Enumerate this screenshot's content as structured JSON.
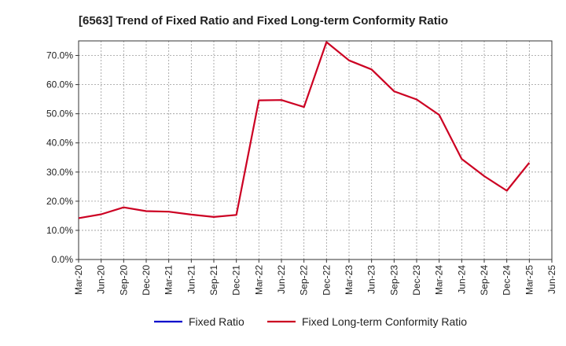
{
  "chart_data": {
    "type": "line",
    "title": "[6563]  Trend of Fixed Ratio and Fixed Long-term Conformity Ratio",
    "xlabel": "",
    "ylabel": "",
    "ylim": [
      0,
      75
    ],
    "y_ticks": [
      0,
      10,
      20,
      30,
      40,
      50,
      60,
      70
    ],
    "y_tick_labels": [
      "0.0%",
      "10.0%",
      "20.0%",
      "30.0%",
      "40.0%",
      "50.0%",
      "60.0%",
      "70.0%"
    ],
    "grid": true,
    "legend_position": "bottom",
    "categories": [
      "Mar-20",
      "Jun-20",
      "Sep-20",
      "Dec-20",
      "Mar-21",
      "Jun-21",
      "Sep-21",
      "Dec-21",
      "Mar-22",
      "Jun-22",
      "Sep-22",
      "Dec-22",
      "Mar-23",
      "Jun-23",
      "Sep-23",
      "Dec-23",
      "Mar-24",
      "Jun-24",
      "Sep-24",
      "Dec-24",
      "Mar-25",
      "Jun-25"
    ],
    "series": [
      {
        "name": "Fixed Ratio",
        "color": "#0000cc",
        "values": [
          null,
          null,
          null,
          null,
          null,
          null,
          null,
          null,
          null,
          null,
          null,
          null,
          null,
          null,
          null,
          null,
          null,
          null,
          null,
          null,
          null,
          null
        ]
      },
      {
        "name": "Fixed Long-term Conformity Ratio",
        "color": "#cc0022",
        "values": [
          14.2,
          15.5,
          17.9,
          16.6,
          16.4,
          15.4,
          14.6,
          15.3,
          54.6,
          54.7,
          52.3,
          74.6,
          68.3,
          65.2,
          57.7,
          54.9,
          49.6,
          34.5,
          28.6,
          23.6,
          33.2,
          null
        ]
      }
    ]
  }
}
